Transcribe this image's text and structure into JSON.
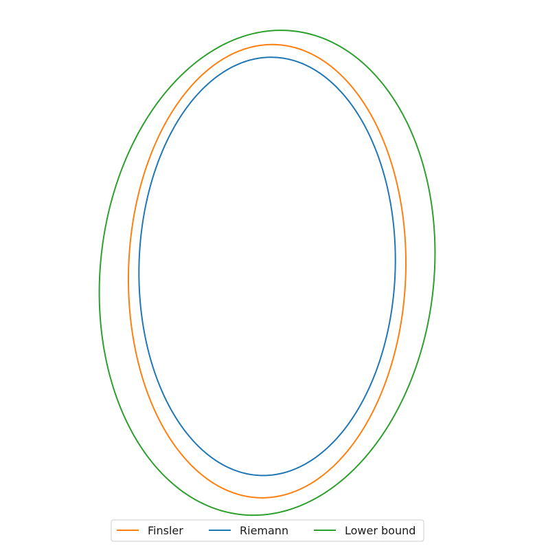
{
  "chart_data": {
    "type": "line",
    "title": "",
    "xlabel": "",
    "ylabel": "",
    "axes_visible": false,
    "grid": false,
    "legend": {
      "placement": "bottom-center",
      "orientation": "horizontal"
    },
    "xlim": [
      -1.65,
      1.65
    ],
    "ylim": [
      -1.5,
      1.6
    ],
    "series": [
      {
        "name": "Finsler",
        "color": "#ff7f0e",
        "curve": "ellipse",
        "center": [
          0.0,
          0.01
        ],
        "radius_x": 1.06,
        "radius_y": 1.42,
        "tilt_deg": -3.5
      },
      {
        "name": "Riemann",
        "color": "#1f77b4",
        "curve": "ellipse",
        "center": [
          0.0,
          0.04
        ],
        "radius_x": 0.98,
        "radius_y": 1.31,
        "tilt_deg": -3.0
      },
      {
        "name": "Lower bound",
        "color": "#2ca02c",
        "curve": "ellipse",
        "center": [
          0.0,
          0.0
        ],
        "radius_x": 1.27,
        "radius_y": 1.53,
        "tilt_deg": -13.0
      }
    ]
  }
}
